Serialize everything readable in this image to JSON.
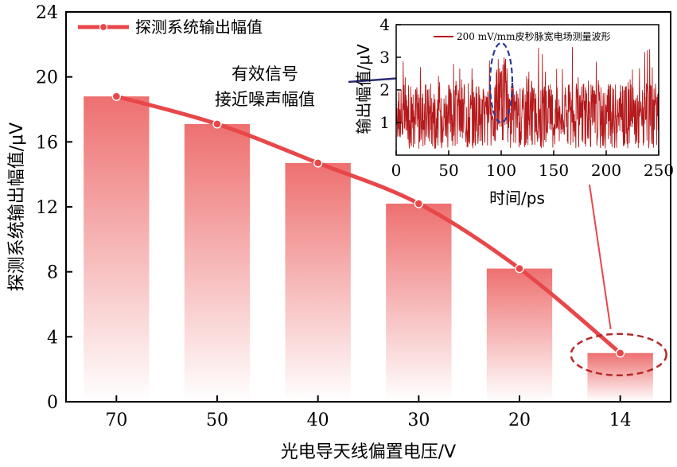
{
  "chart_data": [
    {
      "type": "bar",
      "categories": [
        "70",
        "50",
        "40",
        "30",
        "20",
        "14"
      ],
      "values": [
        18.8,
        17.1,
        14.7,
        12.2,
        8.2,
        3.0
      ],
      "series": [
        {
          "name": "探测系统输出幅值",
          "values": [
            18.8,
            17.1,
            14.7,
            12.2,
            8.2,
            3.0
          ]
        }
      ],
      "xlabel": "光电导天线偏置电压/V",
      "ylabel": "探测系统输出幅值/μV",
      "ylim": [
        0,
        24
      ],
      "yticks": [
        "0",
        "4",
        "8",
        "12",
        "16",
        "20",
        "24"
      ],
      "legend_position": "top-left",
      "annotation": {
        "line1": "有效信号",
        "line2": "接近噪声幅值"
      },
      "colors": {
        "bar": "#ee7070",
        "line": "#e8474a",
        "highlight": "#b22b28",
        "pointer": "#2a2a78"
      }
    },
    {
      "type": "line",
      "series": [
        {
          "name": "200 mV/mm皮秒脉宽电场测量波形"
        }
      ],
      "xlabel": "时间/ps",
      "ylabel": "输出幅值/μV",
      "xlim": [
        0,
        250
      ],
      "ylim": [
        0,
        4
      ],
      "xticks": [
        "0",
        "50",
        "100",
        "150",
        "200",
        "250"
      ],
      "yticks": [
        "1",
        "2",
        "3",
        "4"
      ],
      "legend_position": "top-right",
      "highlight_x": 100,
      "colors": {
        "trace": "#b5191b",
        "ellipse": "#2a3a9a"
      }
    }
  ]
}
